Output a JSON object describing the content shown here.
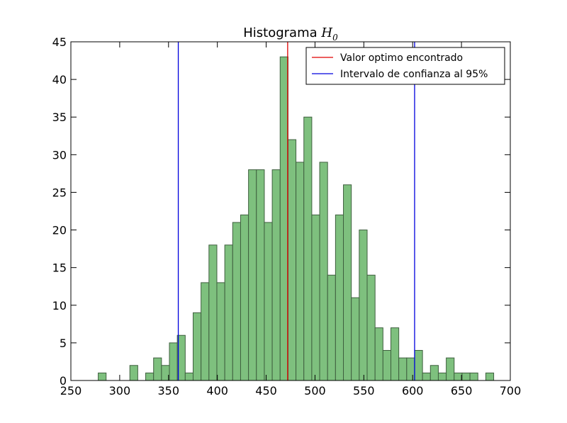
{
  "chart_data": {
    "type": "bar",
    "title": "Histograma ",
    "title_math": "H",
    "title_math_sub": "0",
    "xlim": [
      250,
      700
    ],
    "ylim": [
      0,
      45
    ],
    "xticks": [
      "250",
      "300",
      "350",
      "400",
      "450",
      "500",
      "550",
      "600",
      "650",
      "700"
    ],
    "yticks": [
      "0",
      "5",
      "10",
      "15",
      "20",
      "25",
      "30",
      "35",
      "40",
      "45"
    ],
    "bin_start": 278,
    "bin_width": 8.1,
    "counts": [
      1,
      0,
      0,
      0,
      2,
      0,
      1,
      3,
      2,
      5,
      6,
      1,
      9,
      13,
      18,
      13,
      18,
      21,
      22,
      28,
      28,
      21,
      28,
      43,
      32,
      29,
      35,
      22,
      29,
      14,
      22,
      26,
      11,
      20,
      14,
      7,
      4,
      7,
      3,
      3,
      4,
      1,
      2,
      1,
      3,
      1,
      1,
      1,
      0,
      1
    ],
    "bar_color": "#7ec07e",
    "bar_edge": "#3f5f3f",
    "vlines": [
      {
        "label": "Valor optimo encontrado",
        "x": 472,
        "color": "#e00000"
      },
      {
        "label": "Intervalo de confianza al 95%",
        "x": 360,
        "color": "#0000dd"
      },
      {
        "x": 602,
        "color": "#0000dd"
      }
    ],
    "legend": [
      {
        "label": "Valor optimo encontrado",
        "color": "#e00000"
      },
      {
        "label": "Intervalo de confianza al 95%",
        "color": "#0000dd"
      }
    ],
    "legend_position": "top-right",
    "grid": false
  }
}
